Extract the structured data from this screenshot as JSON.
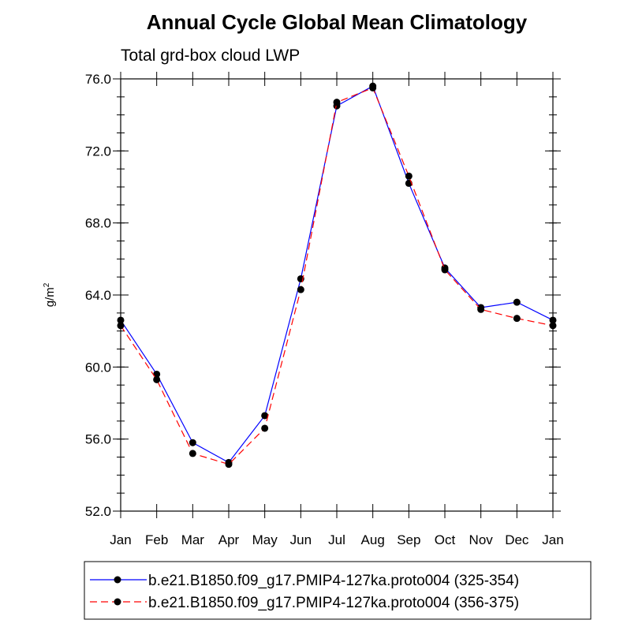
{
  "chart_data": {
    "type": "line",
    "title": "Annual Cycle Global Mean Climatology",
    "subtitle": "Total grd-box cloud LWP",
    "ylabel": "g/m",
    "ylabel_sup": "2",
    "xlabel": "",
    "ylim": [
      52.0,
      76.0
    ],
    "yticks": [
      "52.0",
      "56.0",
      "60.0",
      "64.0",
      "68.0",
      "72.0",
      "76.0"
    ],
    "categories": [
      "Jan",
      "Feb",
      "Mar",
      "Apr",
      "May",
      "Jun",
      "Jul",
      "Aug",
      "Sep",
      "Oct",
      "Nov",
      "Dec",
      "Jan"
    ],
    "series": [
      {
        "name": "b.e21.B1850.f09_g17.PMIP4-127ka.proto004 (325-354)",
        "color": "#0000ff",
        "dash": "solid",
        "values": [
          62.6,
          59.6,
          55.8,
          54.7,
          57.3,
          64.9,
          74.5,
          75.6,
          70.2,
          65.5,
          63.3,
          63.6,
          62.6
        ]
      },
      {
        "name": "b.e21.B1850.f09_g17.PMIP4-127ka.proto004 (356-375)",
        "color": "#ff0000",
        "dash": "dashed",
        "values": [
          62.3,
          59.3,
          55.2,
          54.6,
          56.6,
          64.3,
          74.7,
          75.5,
          70.6,
          65.4,
          63.2,
          62.7,
          62.3
        ]
      }
    ],
    "grid": false,
    "legend_position": "bottom"
  }
}
